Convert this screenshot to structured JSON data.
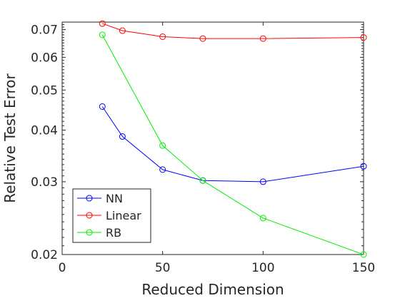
{
  "chart_data": {
    "type": "line",
    "xlabel": "Reduced Dimension",
    "ylabel": "Relative Test Error",
    "xlim": [
      0,
      150
    ],
    "ylim": [
      0.02,
      0.073
    ],
    "yscale": "log",
    "x_ticks": [
      0,
      50,
      100,
      150
    ],
    "x_tick_labels": [
      "0",
      "50",
      "100",
      "150"
    ],
    "y_ticks": [
      0.02,
      0.03,
      0.04,
      0.05,
      0.06,
      0.07
    ],
    "y_tick_labels": [
      "0.02",
      "0.03",
      "0.04",
      "0.05",
      "0.06",
      "0.07"
    ],
    "grid": false,
    "legend_position": "bottom-left",
    "series": [
      {
        "name": "NN",
        "color": "#0000ff",
        "marker": "circle",
        "x": [
          20,
          30,
          50,
          70,
          100,
          150
        ],
        "y": [
          0.0456,
          0.0386,
          0.0321,
          0.0302,
          0.03,
          0.0327
        ]
      },
      {
        "name": "Linear",
        "color": "#ff0000",
        "marker": "circle",
        "x": [
          20,
          30,
          50,
          70,
          100,
          150
        ],
        "y": [
          0.0724,
          0.0696,
          0.0673,
          0.0666,
          0.0666,
          0.067
        ]
      },
      {
        "name": "RB",
        "color": "#00ee00",
        "marker": "circle",
        "x": [
          20,
          50,
          70,
          100,
          150
        ],
        "y": [
          0.068,
          0.0367,
          0.0302,
          0.0245,
          0.02
        ]
      }
    ]
  }
}
